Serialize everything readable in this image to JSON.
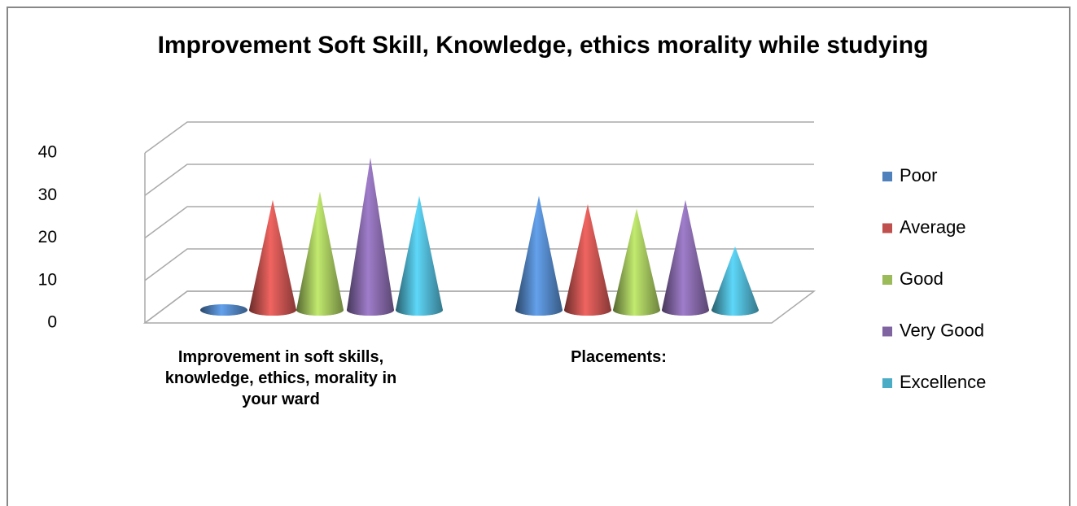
{
  "chart_data": {
    "type": "cone3d",
    "title": "Improvement Soft Skill, Knowledge, ethics morality while studying",
    "categories": [
      "Improvement in soft skills, knowledge, ethics, morality in your ward",
      "Placements:"
    ],
    "series": [
      {
        "name": "Poor",
        "color": "#4f81bd",
        "values": [
          0,
          27
        ]
      },
      {
        "name": "Average",
        "color": "#c0504d",
        "values": [
          26,
          25
        ]
      },
      {
        "name": "Good",
        "color": "#9bbb59",
        "values": [
          28,
          24
        ]
      },
      {
        "name": "Very Good",
        "color": "#8064a2",
        "values": [
          36,
          26
        ]
      },
      {
        "name": "Excellence",
        "color": "#4bacc6",
        "values": [
          27,
          15
        ]
      }
    ],
    "ylim": [
      0,
      40
    ],
    "yticks": [
      0,
      10,
      20,
      30,
      40
    ],
    "grid": true,
    "legend": "right"
  }
}
